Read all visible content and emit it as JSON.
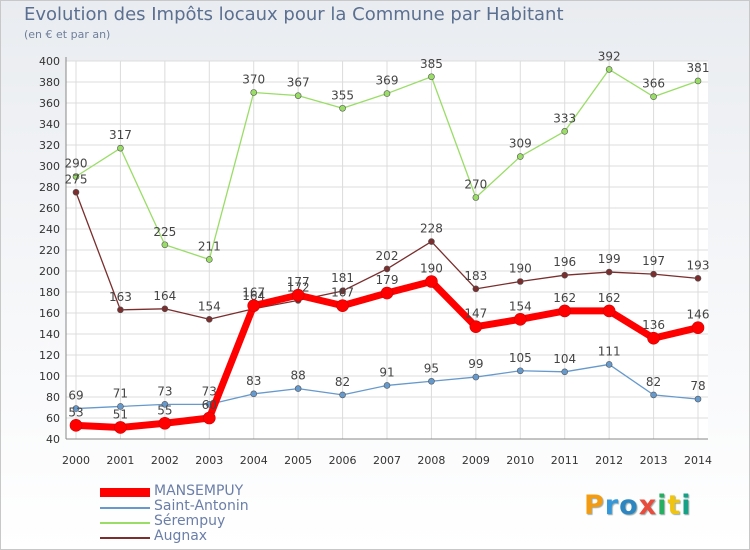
{
  "header": {
    "title": "Evolution des Impôts locaux pour la Commune par Habitant",
    "subtitle": "(en € et par an)"
  },
  "logo": {
    "text": "Proxiti",
    "letters": [
      {
        "char": "P",
        "color": "#f39c12"
      },
      {
        "char": "r",
        "color": "#3498db"
      },
      {
        "char": "o",
        "color": "#2e86c1"
      },
      {
        "char": "x",
        "color": "#e74c3c"
      },
      {
        "char": "i",
        "color": "#27ae60"
      },
      {
        "char": "t",
        "color": "#f1c40f"
      },
      {
        "char": "i",
        "color": "#16a085"
      }
    ]
  },
  "chart_data": {
    "type": "line",
    "x": [
      2000,
      2001,
      2002,
      2003,
      2004,
      2005,
      2006,
      2007,
      2008,
      2009,
      2010,
      2011,
      2012,
      2013,
      2014
    ],
    "ylim": [
      40,
      400
    ],
    "yticks": [
      40,
      60,
      80,
      100,
      120,
      140,
      160,
      180,
      200,
      220,
      240,
      260,
      280,
      300,
      320,
      340,
      360,
      380,
      400
    ],
    "grid": true,
    "legend": "bottom-left",
    "series": [
      {
        "name": "MANSEMPUY",
        "color": "#ff0000",
        "width": 7,
        "values": [
          53,
          51,
          55,
          60,
          167,
          177,
          167,
          179,
          190,
          147,
          154,
          162,
          162,
          136,
          146
        ],
        "labels": [
          "53",
          "51",
          "55",
          "60",
          "167",
          "177",
          "167",
          "179",
          "190",
          "147",
          "154",
          "162",
          "162",
          "136",
          "146"
        ]
      },
      {
        "name": "Saint-Antonin",
        "color": "#6699cc",
        "width": 1.3,
        "values": [
          69,
          71,
          73,
          73,
          83,
          88,
          82,
          91,
          95,
          99,
          105,
          104,
          111,
          82,
          78
        ],
        "labels": [
          "69",
          "71",
          "73",
          "73",
          "83",
          "88",
          "82",
          "91",
          "95",
          "99",
          "105",
          "104",
          "111",
          "82",
          "78"
        ]
      },
      {
        "name": "Sérempuy",
        "color": "#99dd66",
        "width": 1.3,
        "values": [
          290,
          317,
          225,
          211,
          370,
          367,
          355,
          369,
          385,
          270,
          309,
          333,
          392,
          366,
          381
        ],
        "labels": [
          "290",
          "317",
          "225",
          "211",
          "370",
          "367",
          "355",
          "369",
          "385",
          "270",
          "309",
          "333",
          "392",
          "366",
          "381"
        ]
      },
      {
        "name": "Augnax",
        "color": "#7a2e2e",
        "width": 1.3,
        "values": [
          275,
          163,
          164,
          154,
          164,
          172,
          181,
          202,
          228,
          183,
          190,
          196,
          199,
          197,
          193
        ],
        "labels": [
          "275",
          "163",
          "164",
          "154",
          "164",
          "172",
          "181",
          "202",
          "228",
          "183",
          "190",
          "196",
          "199",
          "197",
          "193"
        ]
      }
    ]
  }
}
